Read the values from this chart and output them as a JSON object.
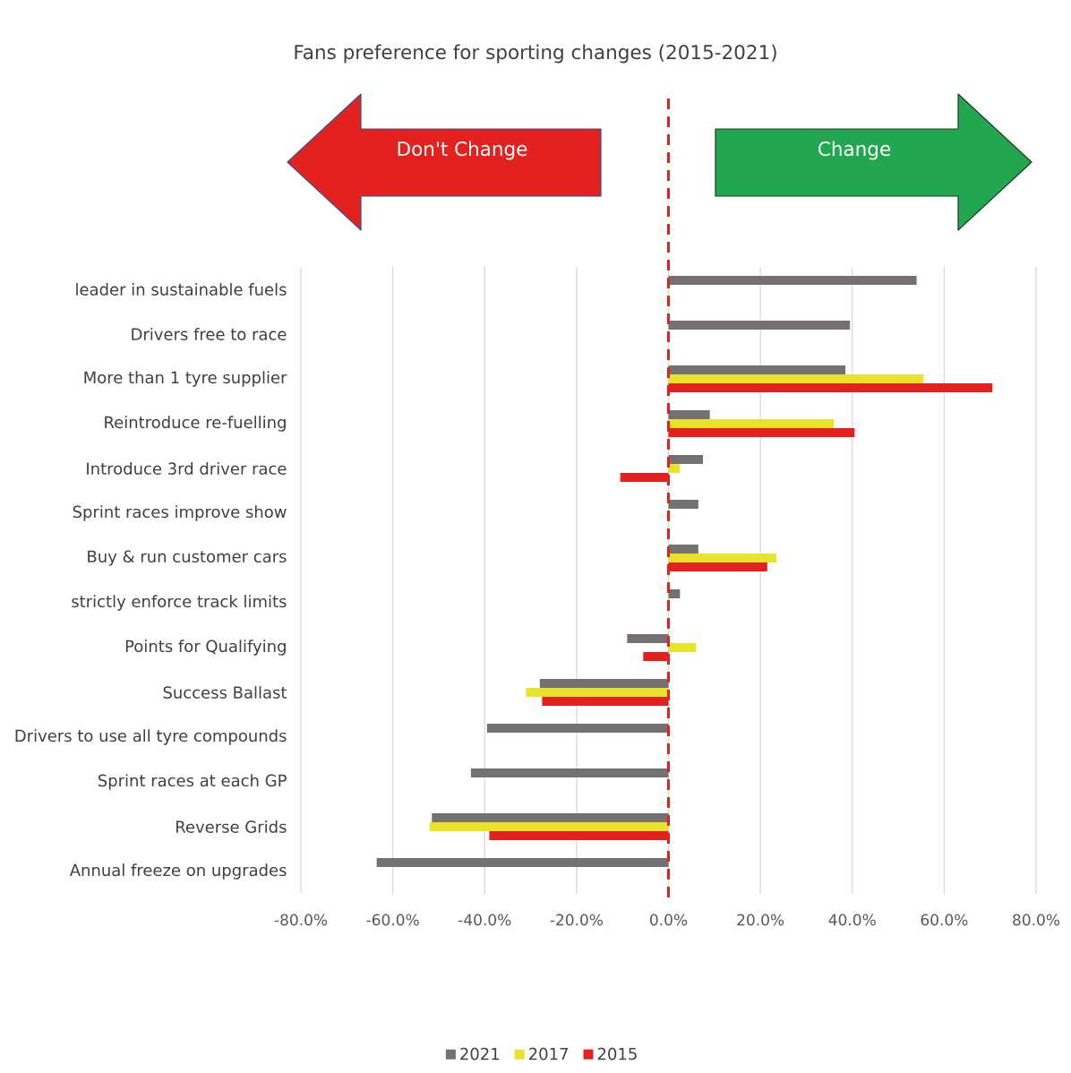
{
  "chart_data": {
    "type": "bar",
    "orientation": "horizontal",
    "title": "Fans preference for sporting changes (2015-2021)",
    "annotations": [
      "Don't Change",
      "Change"
    ],
    "categories": [
      "leader in sustainable fuels",
      "Drivers free to race",
      "More than 1 tyre supplier",
      "Reintroduce re-fuelling",
      "Introduce 3rd driver race",
      "Sprint races improve show",
      "Buy & run customer cars",
      "strictly enforce track limits",
      "Points for Qualifying",
      "Success Ballast",
      "Drivers to use all tyre compounds",
      "Sprint races at each GP",
      "Reverse Grids",
      "Annual freeze on upgrades"
    ],
    "series": [
      {
        "name": "2021",
        "color": "#767171",
        "values": [
          54,
          39.5,
          38.5,
          9,
          7.5,
          6.5,
          6.5,
          2.5,
          -9,
          -28,
          -39.5,
          -43,
          -51.5,
          -63.5
        ]
      },
      {
        "name": "2017",
        "color": "#e8e22a",
        "values": [
          null,
          null,
          55.5,
          36,
          2.5,
          null,
          23.5,
          null,
          6,
          -31,
          null,
          null,
          -52,
          null
        ]
      },
      {
        "name": "2015",
        "color": "#e3211f",
        "values": [
          null,
          null,
          70.5,
          40.5,
          -10.5,
          null,
          21.5,
          null,
          -5.5,
          -27.5,
          null,
          null,
          -39,
          null
        ]
      }
    ],
    "xlim": [
      -80,
      80
    ],
    "xticks": [
      {
        "value": -80,
        "label": "-80.0%"
      },
      {
        "value": -60,
        "label": "-60.0%"
      },
      {
        "value": -40,
        "label": "-40.0%"
      },
      {
        "value": -20,
        "label": "-20.0%"
      },
      {
        "value": 0,
        "label": "0.0%"
      },
      {
        "value": 20,
        "label": "20.0%"
      },
      {
        "value": 40,
        "label": "40.0%"
      },
      {
        "value": 60,
        "label": "60.0%"
      },
      {
        "value": 80,
        "label": "80.0%"
      }
    ],
    "grid": "x",
    "legend": "bottom",
    "ref_lines": [
      {
        "axis": "x",
        "value": 0,
        "color": "#e3211f",
        "line_style": "dashed"
      }
    ]
  }
}
